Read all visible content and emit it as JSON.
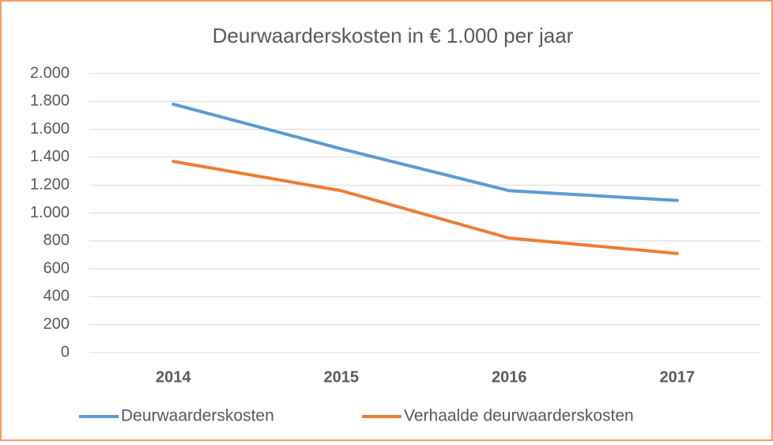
{
  "chart_data": {
    "type": "line",
    "title": "Deurwaarderskosten  in € 1.000 per jaar",
    "categories": [
      "2014",
      "2015",
      "2016",
      "2017"
    ],
    "series": [
      {
        "name": "Deurwaarderskosten",
        "color": "#5b9bd5",
        "values": [
          1780,
          1460,
          1160,
          1090
        ]
      },
      {
        "name": "Verhaalde deurwaarderskosten",
        "color": "#ed7d31",
        "values": [
          1370,
          1160,
          820,
          710
        ]
      }
    ],
    "ylim": [
      0,
      2000
    ],
    "yticks": [
      0,
      200,
      400,
      600,
      800,
      {
        "value": 1000,
        "label": "1.000"
      },
      {
        "value": 1200,
        "label": "1.200"
      },
      {
        "value": 1400,
        "label": "1.400"
      },
      {
        "value": 1600,
        "label": "1.600"
      },
      {
        "value": 1800,
        "label": "1.800"
      },
      {
        "value": 2000,
        "label": "2.000"
      }
    ],
    "grid": true,
    "legend": "bottom"
  }
}
